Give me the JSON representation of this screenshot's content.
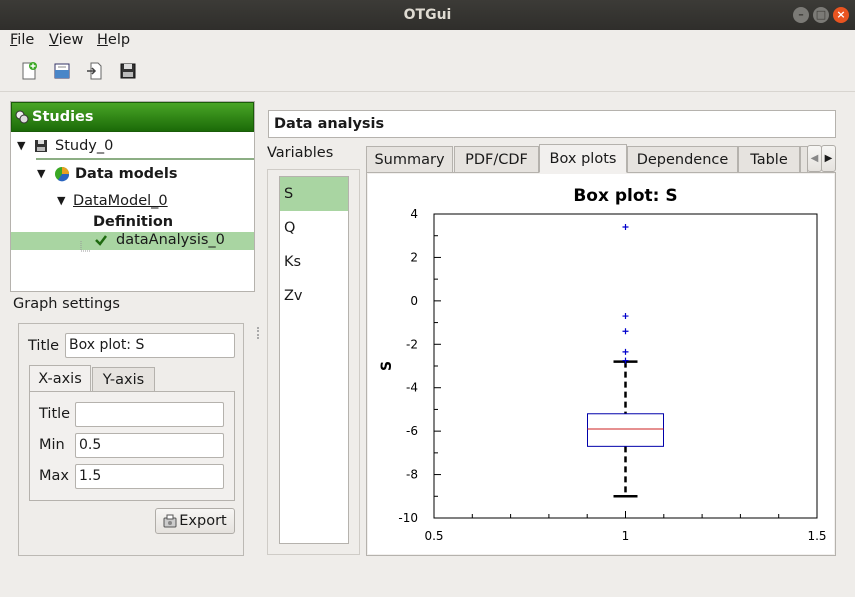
{
  "window": {
    "title": "OTGui"
  },
  "menu": {
    "file": "File",
    "view": "View",
    "help": "Help"
  },
  "toolbar": {
    "icons": [
      "new-study-icon",
      "open-study-icon",
      "import-icon",
      "save-icon"
    ]
  },
  "studies": {
    "header": "Studies",
    "study": "Study_0",
    "data_models": "Data models",
    "data_model": "DataModel_0",
    "definition": "Definition",
    "analysis": "dataAnalysis_0"
  },
  "graph_settings": {
    "heading": "Graph settings",
    "title_label": "Title",
    "title_value": "Box plot: S",
    "tabs": [
      "X-axis",
      "Y-axis"
    ],
    "axis_title_label": "Title",
    "axis_title_value": "",
    "min_label": "Min",
    "min_value": "0.5",
    "max_label": "Max",
    "max_value": "1.5",
    "export": "Export"
  },
  "analysis": {
    "heading": "Data analysis",
    "variables_label": "Variables",
    "variables": [
      "S",
      "Q",
      "Ks",
      "Zv"
    ],
    "selected_variable": "S",
    "tabs": [
      "Summary",
      "PDF/CDF",
      "Box plots",
      "Dependence",
      "Table"
    ],
    "active_tab": "Box plots"
  },
  "chart_data": {
    "type": "box",
    "title": "Box plot: S",
    "ylabel": "S",
    "xlabel": "",
    "xlim": [
      0.5,
      1.5
    ],
    "ylim": [
      -10,
      4
    ],
    "x_ticks": [
      "0.5",
      "1",
      "1.5"
    ],
    "y_ticks": [
      "4",
      "2",
      "0",
      "-2",
      "-4",
      "-6",
      "-8",
      "-10"
    ],
    "box": {
      "x": 1,
      "whisker_high": -2.8,
      "q3": -5.2,
      "median": -5.9,
      "q1": -6.7,
      "whisker_low": -9.0
    },
    "outliers": [
      3.4,
      -0.7,
      -1.4,
      -2.35,
      -2.75
    ],
    "colors": {
      "box": "#0000aa",
      "median": "#cc2222",
      "whisker": "#000000",
      "outlier": "#0000cc"
    }
  }
}
